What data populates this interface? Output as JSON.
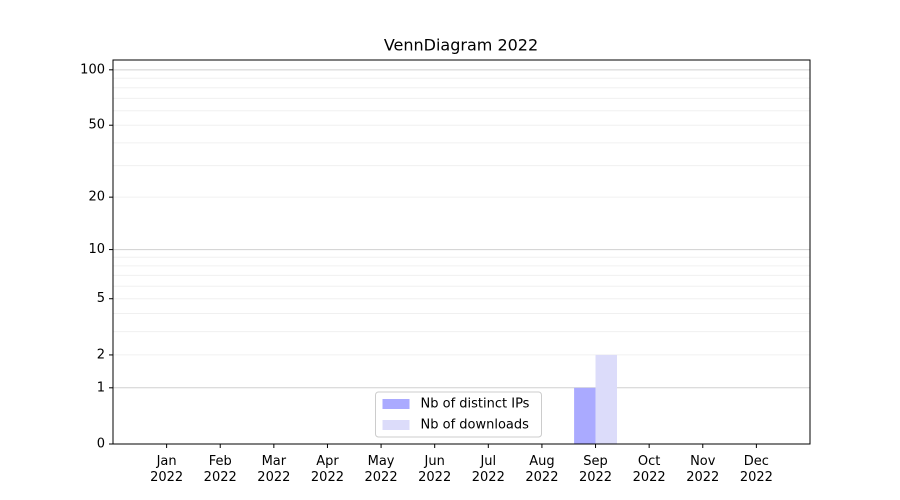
{
  "chart_data": {
    "type": "bar",
    "title": "VennDiagram 2022",
    "categories": [
      "Jan 2022",
      "Feb 2022",
      "Mar 2022",
      "Apr 2022",
      "May 2022",
      "Jun 2022",
      "Jul 2022",
      "Aug 2022",
      "Sep 2022",
      "Oct 2022",
      "Nov 2022",
      "Dec 2022"
    ],
    "series": [
      {
        "name": "Nb of distinct IPs",
        "color": "#aaaaff",
        "values": [
          0,
          0,
          0,
          0,
          0,
          0,
          0,
          0,
          1,
          0,
          0,
          0
        ]
      },
      {
        "name": "Nb of downloads",
        "color": "#dcdcfa",
        "values": [
          0,
          0,
          0,
          0,
          0,
          0,
          0,
          0,
          2,
          0,
          0,
          0
        ]
      }
    ],
    "y_scale": "log1p",
    "ylim": [
      0,
      113
    ],
    "yticks": [
      0,
      1,
      2,
      5,
      10,
      20,
      50,
      100
    ],
    "yminorticks": [
      3,
      4,
      6,
      7,
      8,
      9,
      30,
      40,
      60,
      70,
      80,
      90
    ],
    "grid": true,
    "legend": "lower center"
  }
}
